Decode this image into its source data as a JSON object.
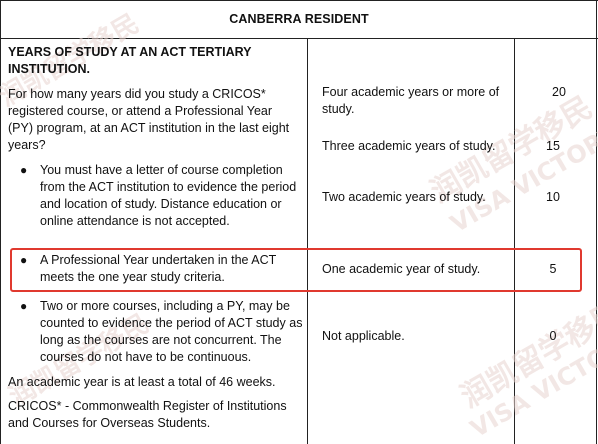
{
  "title": "CANBERRA RESIDENT",
  "watermarks": [
    "润凯留学移民",
    "VISA VICTORY"
  ],
  "left": {
    "heading": "YEARS OF STUDY AT AN ACT TERTIARY INSTITUTION.",
    "question": "For how many years did you study a CRICOS* registered course, or attend a Professional Year (PY) program, at an ACT institution in the last eight years?",
    "bullets": [
      "You must have a letter of course completion from the ACT institution to evidence the period and location of study.  Distance education or online attendance is not accepted.",
      "A Professional Year undertaken in the ACT meets the one year study criteria.",
      "Two or more courses, including a PY, may be counted to evidence the period of ACT study as long as the courses are not concurrent. The courses do not have to be continuous."
    ],
    "academic_year_note": "An academic year is at least a total of 46 weeks.",
    "cricos_note": "CRICOS* - Commonwealth Register of Institutions and Courses for Overseas Students."
  },
  "options": [
    {
      "label": "Four academic years or more of study.",
      "points": "20"
    },
    {
      "label": "Three academic years of study.",
      "points": "15"
    },
    {
      "label": "Two academic years of study.",
      "points": "10"
    },
    {
      "label": "One academic year of study.",
      "points": "5"
    },
    {
      "label": "Not applicable.",
      "points": "0"
    }
  ],
  "colors": {
    "highlight": "#e0392f",
    "watermark": "#e8d5d0"
  }
}
